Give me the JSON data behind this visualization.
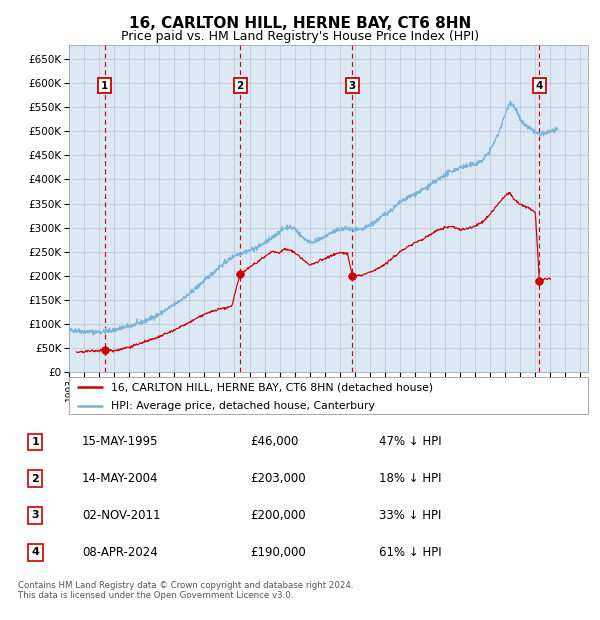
{
  "title": "16, CARLTON HILL, HERNE BAY, CT6 8HN",
  "subtitle": "Price paid vs. HM Land Registry's House Price Index (HPI)",
  "title_fontsize": 11,
  "subtitle_fontsize": 9,
  "plot_bg_color": "#dce9f5",
  "fig_bg_color": "#ffffff",
  "ylim": [
    0,
    680000
  ],
  "yticks": [
    0,
    50000,
    100000,
    150000,
    200000,
    250000,
    300000,
    350000,
    400000,
    450000,
    500000,
    550000,
    600000,
    650000
  ],
  "xlim_start": 1993.0,
  "xlim_end": 2027.5,
  "xticks": [
    1993,
    1994,
    1995,
    1996,
    1997,
    1998,
    1999,
    2000,
    2001,
    2002,
    2003,
    2004,
    2005,
    2006,
    2007,
    2008,
    2009,
    2010,
    2011,
    2012,
    2013,
    2014,
    2015,
    2016,
    2017,
    2018,
    2019,
    2020,
    2021,
    2022,
    2023,
    2024,
    2025,
    2026,
    2027
  ],
  "hpi_color": "#7ab4d8",
  "price_color": "#cc0000",
  "sale_marker_color": "#cc0000",
  "dashed_line_color": "#cc0000",
  "grid_color": "#9999bb",
  "sales": [
    {
      "num": 1,
      "date_dec": 1995.37,
      "price": 46000,
      "label": "1"
    },
    {
      "num": 2,
      "date_dec": 2004.37,
      "price": 203000,
      "label": "2"
    },
    {
      "num": 3,
      "date_dec": 2011.84,
      "price": 200000,
      "label": "3"
    },
    {
      "num": 4,
      "date_dec": 2024.27,
      "price": 190000,
      "label": "4"
    }
  ],
  "table_rows": [
    {
      "num": "1",
      "date": "15-MAY-1995",
      "price": "£46,000",
      "hpi": "47% ↓ HPI"
    },
    {
      "num": "2",
      "date": "14-MAY-2004",
      "price": "£203,000",
      "hpi": "18% ↓ HPI"
    },
    {
      "num": "3",
      "date": "02-NOV-2011",
      "price": "£200,000",
      "hpi": "33% ↓ HPI"
    },
    {
      "num": "4",
      "date": "08-APR-2024",
      "price": "£190,000",
      "hpi": "61% ↓ HPI"
    }
  ],
  "legend_line1": "16, CARLTON HILL, HERNE BAY, CT6 8HN (detached house)",
  "legend_line2": "HPI: Average price, detached house, Canterbury",
  "footer": "Contains HM Land Registry data © Crown copyright and database right 2024.\nThis data is licensed under the Open Government Licence v3.0."
}
